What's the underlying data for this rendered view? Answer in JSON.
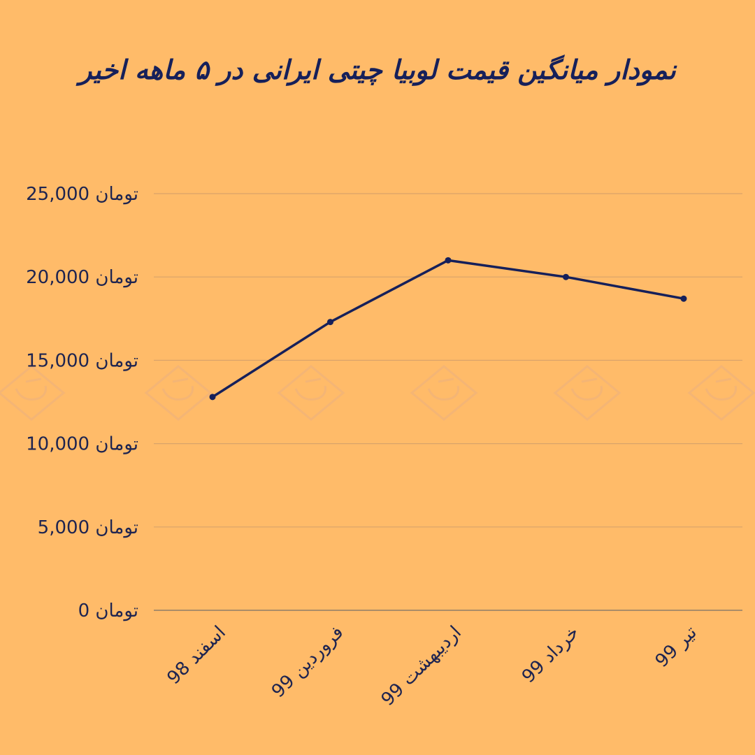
{
  "chart_data": {
    "type": "line",
    "title": "نمودار میانگین قیمت لوبیا چیتی ایرانی در ۵ ماهه اخیر",
    "categories": [
      "اسفند 98",
      "فروردین 99",
      "اردیبهشت 99",
      "خرداد 99",
      "تیر 99"
    ],
    "series": [
      {
        "values": [
          12800,
          17300,
          21000,
          20000,
          18700
        ]
      }
    ],
    "yticks": [
      0,
      5000,
      10000,
      15000,
      20000,
      25000
    ],
    "ytick_labels": [
      "0 تومان",
      "5,000 تومان",
      "10,000 تومان",
      "15,000 تومان",
      "20,000 تومان",
      "25,000 تومان"
    ],
    "ylim": [
      0,
      25000
    ],
    "grid": true,
    "legend": "none",
    "colors": {
      "background": "#FFBB69",
      "line": "#16205A",
      "text": "#1E2450",
      "grid": "#D9A36A"
    }
  }
}
